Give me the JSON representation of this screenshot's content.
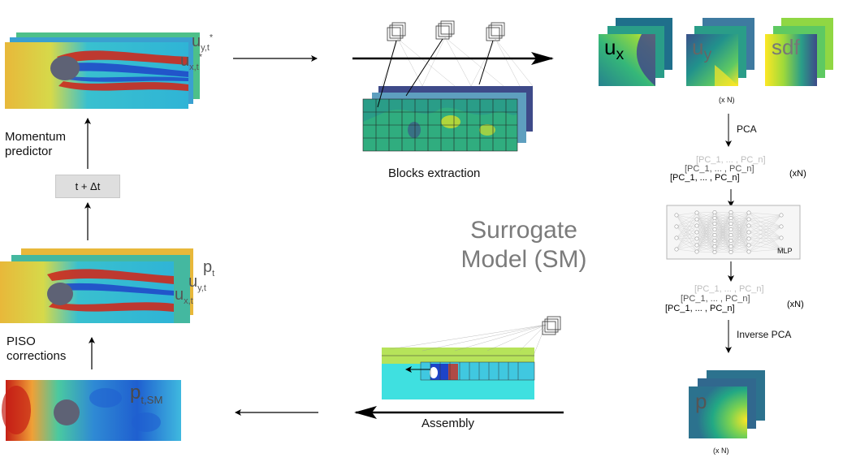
{
  "left": {
    "momentum_predictor": [
      "Momentum",
      "predictor"
    ],
    "dt_box": "t + Δt",
    "piso_corrections": [
      "PISO",
      "corrections"
    ],
    "top_labels": {
      "uy": "u",
      "uy_sub": "y,t",
      "uy_sup": "*",
      "ux": "u",
      "ux_sub": "x,t",
      "ux_sup": "*"
    },
    "mid_labels": {
      "p": "p",
      "p_sub": "t",
      "uy": "u",
      "uy_sub": "y,t",
      "ux": "u",
      "ux_sub": "x,t"
    },
    "bottom_label": {
      "p": "p",
      "p_sub": "t,SM"
    }
  },
  "surrogate": {
    "title": [
      "Surrogate",
      "Model (SM)"
    ],
    "blocks_extraction": "Blocks extraction",
    "assembly": "Assembly",
    "inputs": {
      "ux": "u",
      "ux_sub": "x",
      "uy": "u",
      "uy_sub": "y",
      "sdf": "sdf"
    },
    "xN_top": "(x N)",
    "pca": "PCA",
    "pc_line": "[PC_1, ... , PC_n]",
    "xN_pc": "(xN)",
    "mlp": "MLP",
    "inverse_pca": "Inverse PCA",
    "output": "p",
    "xN_bottom": "(x N)"
  },
  "colors": {
    "sm_panel": "#f2f2f2",
    "flow_red": "#cc2a1e",
    "flow_blue": "#1e44c8",
    "flow_cyan": "#3ec6d8",
    "viridis_dark": "#35337a",
    "viridis_green": "#2a9d88",
    "viridis_yellow": "#e7e71f",
    "obstacle": "#5e6275"
  }
}
